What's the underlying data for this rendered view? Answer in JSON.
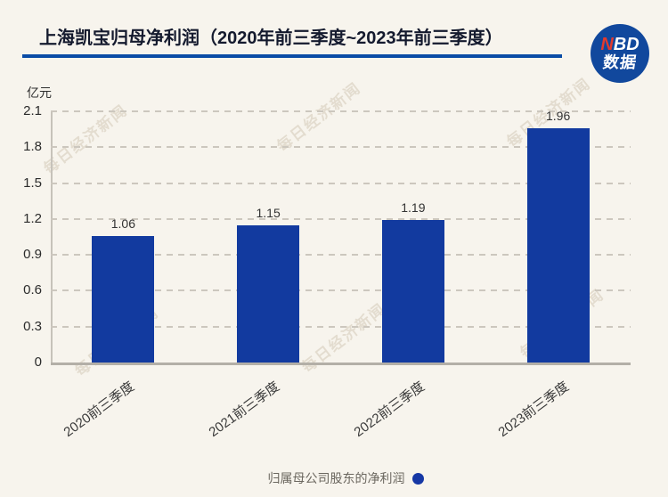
{
  "page": {
    "background_color": "#f7f4ed"
  },
  "header": {
    "title": "上海凯宝归母净利润（2020年前三季度~2023年前三季度）",
    "divider_color": "#0a4ca6",
    "logo": {
      "n": "N",
      "bd": "BD",
      "sub": "数据",
      "circle_color": "#11489d",
      "n_color": "#e23a2e"
    }
  },
  "watermark": {
    "text": "每日经济新闻"
  },
  "chart_data": {
    "type": "bar",
    "title": "上海凯宝归母净利润（2020年前三季度~2023年前三季度）",
    "unit_label": "亿元",
    "categories": [
      "2020前三季度",
      "2021前三季度",
      "2022前三季度",
      "2023前三季度"
    ],
    "values": [
      1.06,
      1.15,
      1.19,
      1.96
    ],
    "value_labels": [
      "1.06",
      "1.15",
      "1.19",
      "1.96"
    ],
    "ylim": [
      0,
      2.1
    ],
    "yticks": [
      "2.1",
      "1.8",
      "1.5",
      "1.2",
      "0.9",
      "0.6",
      "0.3",
      "0"
    ],
    "grid": "horizontal-dashed",
    "bar_color": "#123a9f",
    "legend_position": "bottom",
    "legend": [
      {
        "label": "归属母公司股东的净利润",
        "marker_color": "#1638a5"
      }
    ]
  }
}
